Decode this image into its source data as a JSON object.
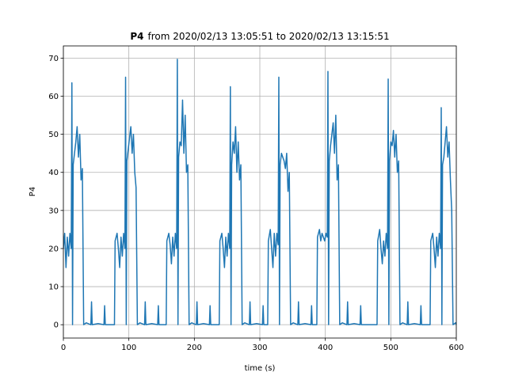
{
  "chart_data": {
    "type": "line",
    "title": [
      "P4",
      "from 2020/02/13 13:05:51 to 2020/02/13 13:15:51"
    ],
    "xlabel": "time (s)",
    "ylabel": "P4",
    "xlim": [
      0,
      600
    ],
    "xticks": [
      0,
      100,
      200,
      300,
      400,
      500,
      600
    ],
    "ylim": [
      -3.5,
      73.2
    ],
    "yticks": [
      0,
      10,
      20,
      30,
      40,
      50,
      60,
      70
    ],
    "grid": true,
    "series": [
      {
        "name": "P4",
        "color": "#1f77b4",
        "x": [
          0,
          2,
          4,
          6,
          8,
          10,
          12,
          13,
          14,
          15,
          17,
          19,
          21,
          23,
          25,
          27,
          29,
          31,
          35,
          42,
          43,
          44,
          53,
          62,
          63,
          64,
          78,
          79,
          82,
          84,
          86,
          88,
          90,
          92,
          94,
          95,
          96,
          97,
          99,
          101,
          103,
          105,
          107,
          109,
          111,
          113,
          117,
          124,
          125,
          126,
          135,
          144,
          145,
          146,
          157,
          158,
          161,
          163,
          165,
          167,
          169,
          171,
          173,
          174,
          175,
          176,
          178,
          180,
          182,
          184,
          186,
          188,
          190,
          192,
          196,
          203,
          204,
          205,
          214,
          223,
          224,
          225,
          238,
          239,
          242,
          244,
          246,
          248,
          250,
          252,
          254,
          255,
          256,
          257,
          259,
          261,
          263,
          265,
          267,
          269,
          271,
          273,
          277,
          284,
          285,
          286,
          295,
          304,
          305,
          306,
          312,
          313,
          316,
          318,
          320,
          322,
          324,
          326,
          328,
          329,
          330,
          331,
          333,
          335,
          337,
          339,
          341,
          343,
          345,
          347,
          351,
          358,
          359,
          360,
          369,
          378,
          379,
          380,
          387,
          388,
          391,
          393,
          395,
          397,
          399,
          401,
          403,
          404,
          405,
          406,
          408,
          410,
          412,
          414,
          416,
          418,
          420,
          422,
          426,
          433,
          434,
          435,
          444,
          453,
          454,
          455,
          479,
          480,
          483,
          485,
          487,
          489,
          491,
          493,
          495,
          496,
          497,
          498,
          500,
          502,
          504,
          506,
          508,
          510,
          512,
          514,
          518,
          525,
          526,
          527,
          536,
          545,
          546,
          547,
          560,
          561,
          564,
          566,
          568,
          570,
          572,
          574,
          576,
          577,
          578,
          579,
          581,
          583,
          585,
          587,
          589,
          591,
          593,
          595,
          599,
          600
        ],
        "values": [
          20,
          24,
          15,
          23,
          18,
          24,
          20,
          63.5,
          0,
          42,
          45,
          48,
          52,
          44,
          50,
          38,
          41,
          0,
          0.5,
          0,
          6,
          0,
          0.3,
          0,
          5,
          0,
          0,
          22,
          24,
          20,
          15,
          23,
          18,
          24,
          20,
          65,
          0,
          43,
          46,
          49,
          52,
          45,
          50,
          40,
          36,
          0,
          0.5,
          0,
          6,
          0,
          0.3,
          0,
          5,
          0,
          0,
          22,
          24,
          21,
          16,
          23,
          18,
          24,
          20,
          69.7,
          0,
          44,
          48,
          47,
          59,
          45,
          55,
          40,
          42,
          0,
          0.5,
          0,
          6,
          0,
          0.3,
          0,
          5,
          0,
          0,
          22,
          24,
          20,
          15,
          23,
          18,
          24,
          20,
          62.5,
          0,
          42,
          48,
          45,
          52,
          40,
          48,
          38,
          42,
          0,
          0.5,
          0,
          6,
          0,
          0.3,
          0,
          5,
          0,
          0,
          22,
          25,
          20,
          15,
          24,
          18,
          24,
          21,
          65,
          0,
          42,
          45,
          44,
          43,
          41,
          45,
          35,
          40,
          0,
          0.5,
          0,
          6,
          0,
          0.3,
          0,
          5,
          0,
          0,
          23,
          25,
          22,
          24,
          23,
          22,
          24,
          23,
          66.5,
          0,
          43,
          47,
          50,
          53,
          45,
          55,
          38,
          42,
          0,
          0.5,
          0,
          6,
          0,
          0.3,
          0,
          5,
          0,
          0,
          22,
          25,
          20,
          16,
          22,
          18,
          24,
          20,
          64.5,
          0,
          43,
          48,
          47,
          51,
          44,
          50,
          40,
          43,
          0,
          0.5,
          0,
          6,
          0,
          0.3,
          0,
          5,
          0,
          0,
          22,
          24,
          20,
          15,
          23,
          18,
          24,
          20,
          57,
          0,
          42,
          44,
          48,
          52,
          44,
          48,
          38,
          30,
          0,
          0.5,
          0
        ]
      }
    ]
  }
}
